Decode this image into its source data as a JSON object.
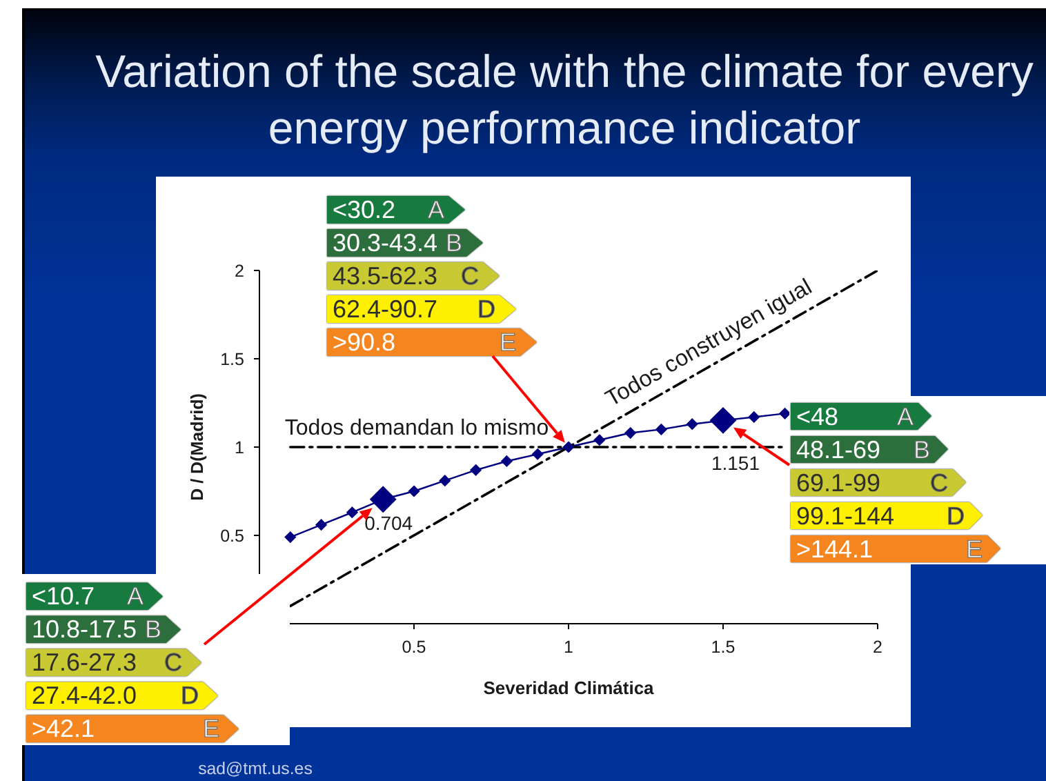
{
  "chart_data": {
    "type": "line",
    "title": "Variation of the scale with the climate for every energy performance indicator",
    "xlabel": "Severidad Climática",
    "ylabel": "D / D(Madrid)",
    "xlim": [
      0,
      2
    ],
    "xticks": [
      0.5,
      1,
      1.5,
      2
    ],
    "ylim": [
      0,
      2
    ],
    "yticks": [
      0.5,
      1,
      1.5,
      2
    ],
    "series": [
      {
        "color": "#000080",
        "marker": "diamond",
        "x": [
          0.1,
          0.2,
          0.3,
          0.4,
          0.5,
          0.6,
          0.7,
          0.8,
          0.9,
          1.0,
          1.1,
          1.2,
          1.3,
          1.4,
          1.5,
          1.6,
          1.7
        ],
        "values": [
          0.49,
          0.56,
          0.63,
          0.704,
          0.75,
          0.81,
          0.87,
          0.92,
          0.96,
          1.0,
          1.04,
          1.08,
          1.1,
          1.13,
          1.151,
          1.17,
          1.19
        ]
      },
      {
        "type": "scatter",
        "color": "#000080",
        "marker": "diamond",
        "x": [
          0.4,
          1.5
        ],
        "values": [
          0.704,
          1.151
        ],
        "value_labels": [
          "0.704",
          "1.151"
        ]
      },
      {
        "name": "Todos construyen igual",
        "color": "#000000",
        "line_style": "dashed",
        "marker": "none",
        "x": [
          0.1,
          2
        ],
        "values": [
          0.1,
          2
        ]
      },
      {
        "name": "Todos demandan lo mismo",
        "color": "#000000",
        "line_style": "dashed",
        "marker": "none",
        "x": [
          0.1,
          1.7
        ],
        "values": [
          1,
          1
        ]
      }
    ],
    "annotations": [
      "<30.2",
      "A",
      "30.3-43.4",
      "B",
      "43.5-62.3",
      "C",
      "62.4-90.7",
      "D",
      ">90.8",
      "E",
      "<48",
      "A",
      "48.1-69",
      "B",
      "69.1-99",
      "C",
      "99.1-144",
      "D",
      ">144.1",
      "E",
      "<10.7",
      "A",
      "10.8-17.5",
      "B",
      "17.6-27.3",
      "C",
      "27.4-42.0",
      "D",
      ">42.1",
      "E",
      "sad@tmt.us.es"
    ]
  }
}
